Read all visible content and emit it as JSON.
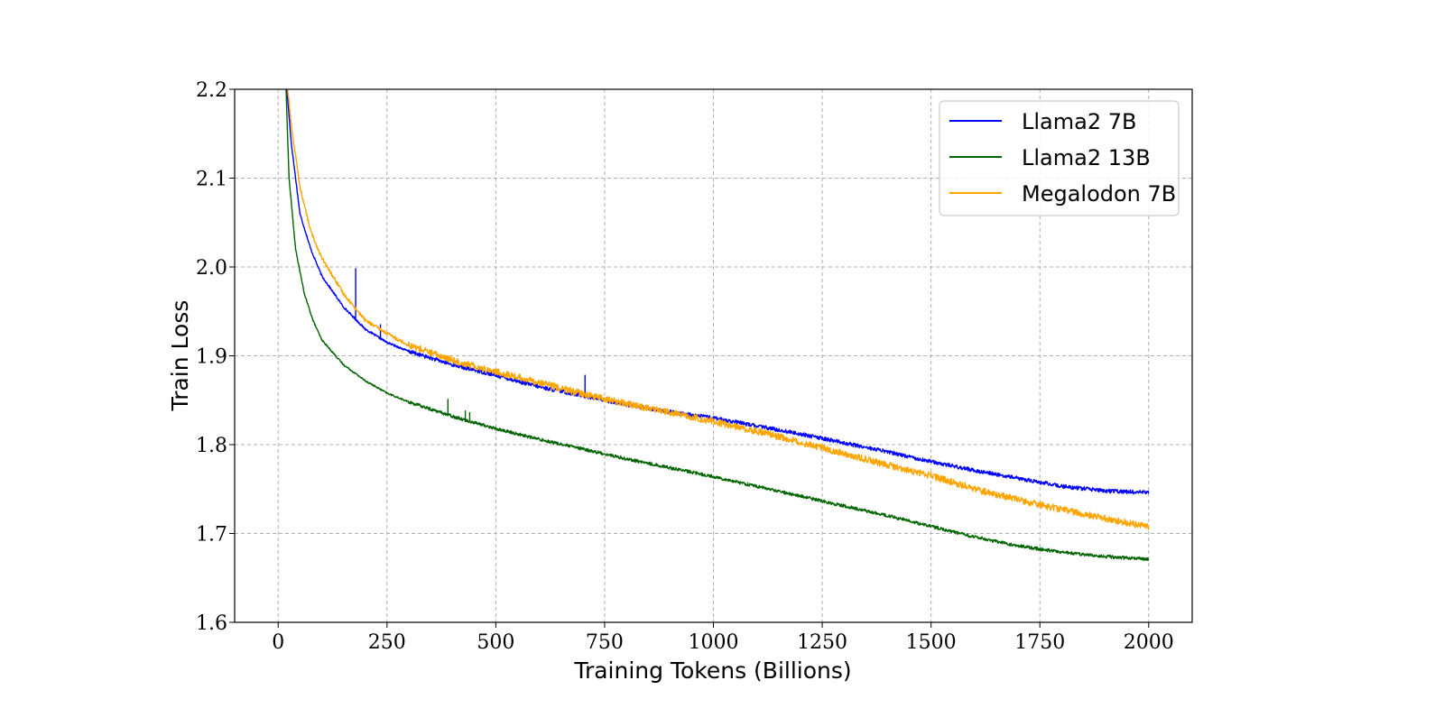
{
  "chart_data": {
    "type": "line",
    "title": "",
    "xlabel": "Training Tokens (Billions)",
    "ylabel": "Train Loss",
    "xlim": [
      -100,
      2100
    ],
    "ylim": [
      1.6,
      2.2
    ],
    "x_ticks": [
      0,
      250,
      500,
      750,
      1000,
      1250,
      1500,
      1750,
      2000
    ],
    "y_ticks": [
      1.6,
      1.7,
      1.8,
      1.9,
      2.0,
      2.1,
      2.2
    ],
    "x_tick_labels": [
      "0",
      "250",
      "500",
      "750",
      "1000",
      "1250",
      "1500",
      "1750",
      "2000"
    ],
    "y_tick_labels": [
      "1.6",
      "1.7",
      "1.8",
      "1.9",
      "2.0",
      "2.1",
      "2.2"
    ],
    "grid": true,
    "legend_position": "top-right",
    "series": [
      {
        "name": "Llama2 7B",
        "color": "#0000ff",
        "x": [
          20,
          30,
          50,
          75,
          100,
          150,
          200,
          250,
          300,
          400,
          500,
          600,
          700,
          800,
          900,
          1000,
          1100,
          1200,
          1300,
          1400,
          1500,
          1600,
          1700,
          1800,
          1900,
          2000
        ],
        "y": [
          2.2,
          2.14,
          2.06,
          2.02,
          1.99,
          1.955,
          1.93,
          1.915,
          1.905,
          1.89,
          1.878,
          1.865,
          1.855,
          1.845,
          1.837,
          1.83,
          1.821,
          1.812,
          1.802,
          1.792,
          1.781,
          1.771,
          1.762,
          1.753,
          1.748,
          1.746
        ],
        "spikes": [
          {
            "x": 178,
            "y": 1.998
          },
          {
            "x": 235,
            "y": 1.935
          },
          {
            "x": 705,
            "y": 1.878
          }
        ]
      },
      {
        "name": "Llama2 13B",
        "color": "#006400",
        "x": [
          18,
          25,
          40,
          60,
          80,
          100,
          150,
          200,
          250,
          300,
          400,
          500,
          600,
          700,
          800,
          900,
          1000,
          1100,
          1200,
          1300,
          1400,
          1500,
          1600,
          1700,
          1800,
          1900,
          2000
        ],
        "y": [
          2.2,
          2.1,
          2.02,
          1.97,
          1.94,
          1.918,
          1.89,
          1.872,
          1.858,
          1.848,
          1.832,
          1.818,
          1.806,
          1.795,
          1.784,
          1.774,
          1.764,
          1.753,
          1.742,
          1.731,
          1.72,
          1.708,
          1.696,
          1.686,
          1.679,
          1.674,
          1.671
        ],
        "spikes": [
          {
            "x": 390,
            "y": 1.851
          },
          {
            "x": 430,
            "y": 1.838
          },
          {
            "x": 440,
            "y": 1.836
          }
        ]
      },
      {
        "name": "Megalodon 7B",
        "color": "#ffa500",
        "x": [
          22,
          30,
          50,
          75,
          100,
          150,
          200,
          250,
          300,
          400,
          500,
          600,
          700,
          800,
          900,
          1000,
          1100,
          1200,
          1300,
          1400,
          1500,
          1600,
          1700,
          1800,
          1900,
          2000
        ],
        "y": [
          2.2,
          2.16,
          2.09,
          2.04,
          2.01,
          1.97,
          1.94,
          1.925,
          1.912,
          1.895,
          1.882,
          1.87,
          1.857,
          1.846,
          1.836,
          1.826,
          1.815,
          1.803,
          1.79,
          1.777,
          1.765,
          1.75,
          1.738,
          1.727,
          1.717,
          1.707
        ],
        "spikes": []
      }
    ]
  }
}
